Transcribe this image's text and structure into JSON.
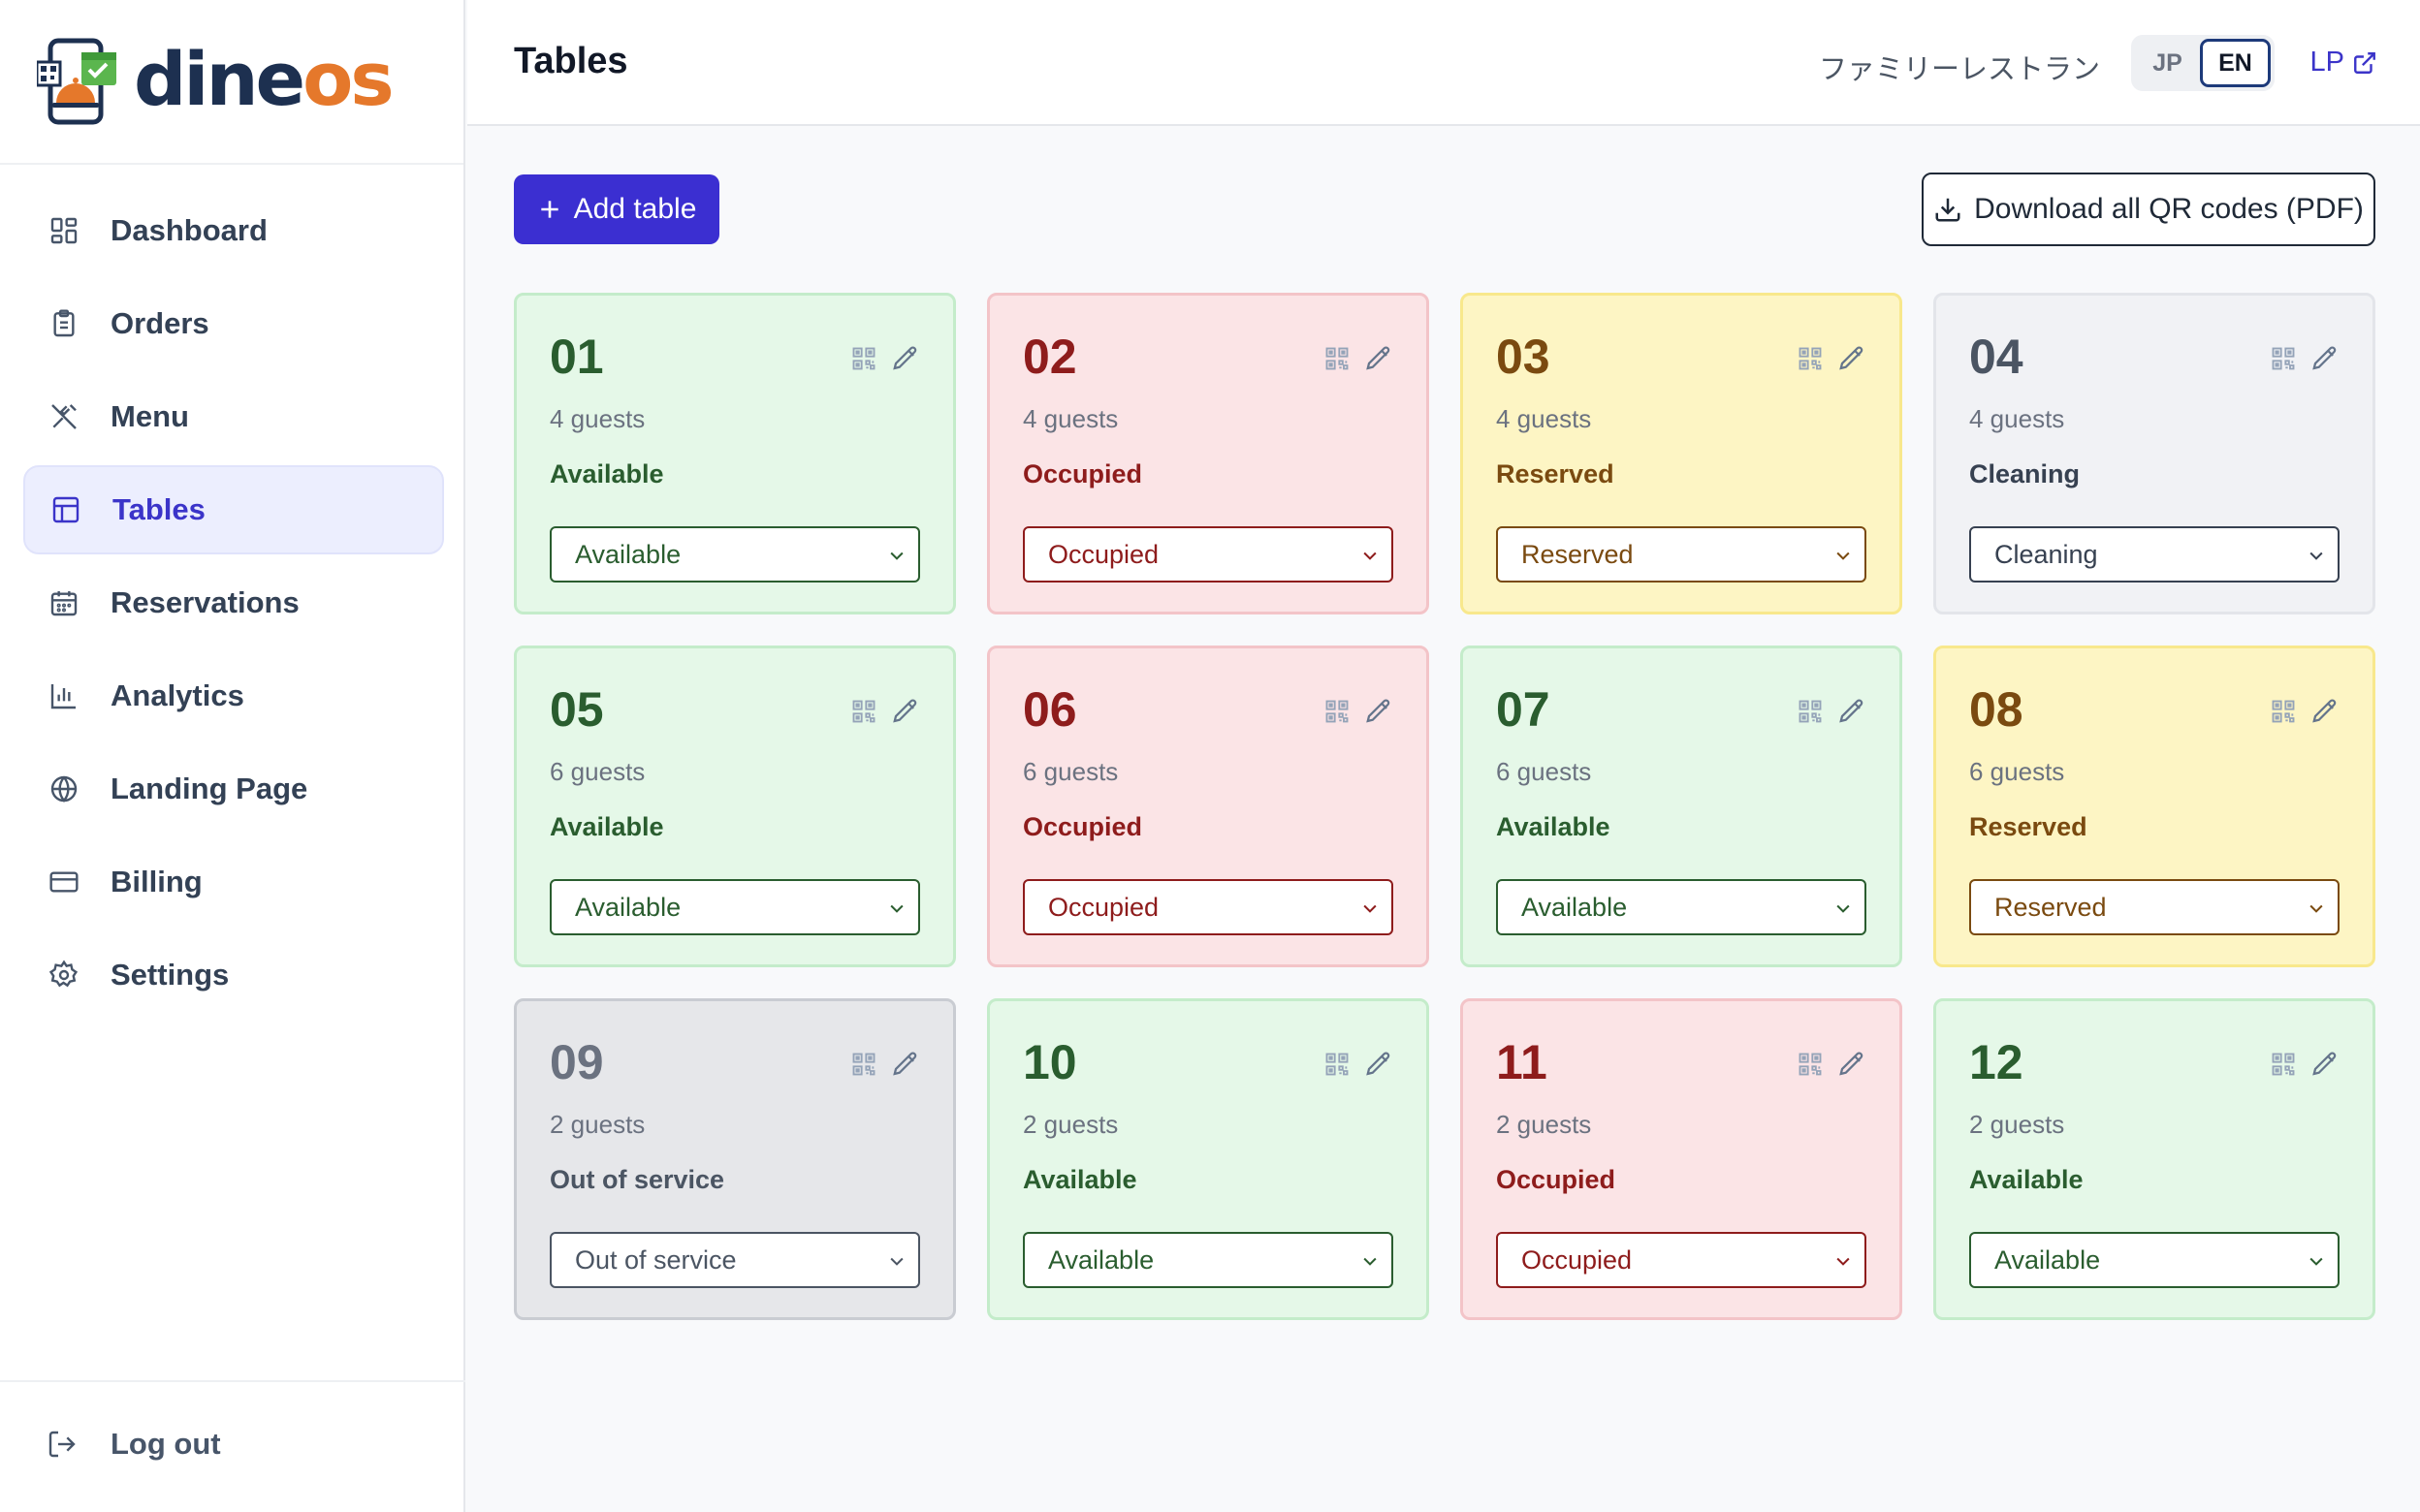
{
  "logo": {
    "text_dine": "dine",
    "text_os": "os"
  },
  "sidebar": {
    "items": [
      {
        "label": "Dashboard",
        "icon": "dashboard-icon",
        "active": false
      },
      {
        "label": "Orders",
        "icon": "clipboard-icon",
        "active": false
      },
      {
        "label": "Menu",
        "icon": "utensils-icon",
        "active": false
      },
      {
        "label": "Tables",
        "icon": "table-icon",
        "active": true
      },
      {
        "label": "Reservations",
        "icon": "calendar-icon",
        "active": false
      },
      {
        "label": "Analytics",
        "icon": "bar-chart-icon",
        "active": false
      },
      {
        "label": "Landing Page",
        "icon": "globe-icon",
        "active": false
      },
      {
        "label": "Billing",
        "icon": "credit-card-icon",
        "active": false
      },
      {
        "label": "Settings",
        "icon": "gear-icon",
        "active": false
      }
    ],
    "logout_label": "Log out"
  },
  "header": {
    "title": "Tables",
    "restaurant_name": "ファミリーレストラン",
    "lang_jp": "JP",
    "lang_en": "EN",
    "lang_active": "EN",
    "lp_link": "LP"
  },
  "toolbar": {
    "add_label": "Add table",
    "download_label": "Download all QR codes (PDF)"
  },
  "colors": {
    "accent": "#3b2fd1",
    "available": "#2a5d2f",
    "occupied": "#8e1c1c",
    "reserved": "#7a4a10",
    "cleaning": "#374151",
    "out_of_service": "#4b5563"
  },
  "tables": [
    {
      "number": "01",
      "guests": "4 guests",
      "status": "Available",
      "select_value": "Available",
      "state": "available"
    },
    {
      "number": "02",
      "guests": "4 guests",
      "status": "Occupied",
      "select_value": "Occupied",
      "state": "occupied"
    },
    {
      "number": "03",
      "guests": "4 guests",
      "status": "Reserved",
      "select_value": "Reserved",
      "state": "reserved"
    },
    {
      "number": "04",
      "guests": "4 guests",
      "status": "Cleaning",
      "select_value": "Cleaning",
      "state": "cleaning"
    },
    {
      "number": "05",
      "guests": "6 guests",
      "status": "Available",
      "select_value": "Available",
      "state": "available"
    },
    {
      "number": "06",
      "guests": "6 guests",
      "status": "Occupied",
      "select_value": "Occupied",
      "state": "occupied"
    },
    {
      "number": "07",
      "guests": "6 guests",
      "status": "Available",
      "select_value": "Available",
      "state": "available"
    },
    {
      "number": "08",
      "guests": "6 guests",
      "status": "Reserved",
      "select_value": "Reserved",
      "state": "reserved"
    },
    {
      "number": "09",
      "guests": "2 guests",
      "status": "Out of service",
      "select_value": "Out of service",
      "state": "oos"
    },
    {
      "number": "10",
      "guests": "2 guests",
      "status": "Available",
      "select_value": "Available",
      "state": "available"
    },
    {
      "number": "11",
      "guests": "2 guests",
      "status": "Occupied",
      "select_value": "Occupied",
      "state": "occupied"
    },
    {
      "number": "12",
      "guests": "2 guests",
      "status": "Available",
      "select_value": "Available",
      "state": "available"
    }
  ]
}
